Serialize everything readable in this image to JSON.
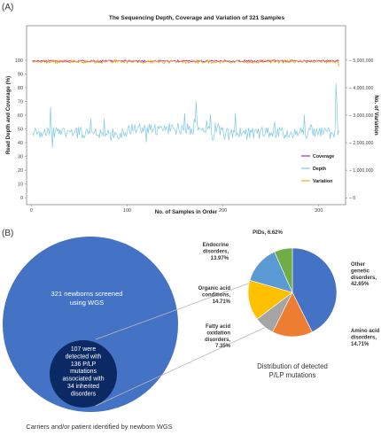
{
  "panel_a": {
    "label": "(A)"
  },
  "panel_b": {
    "label": "(B)",
    "venn": {
      "outer_lines": [
        "321 newborns screened",
        "using WGS"
      ],
      "inner_lines": [
        "107 were",
        "detected with",
        "136 P/LP",
        "mutations",
        "associated with",
        "34  inherited",
        "disorders"
      ],
      "caption": "Carriers and/or patient identified by newborn WGS",
      "outer_color": "#4472c4",
      "inner_color": "#0b2a63"
    }
  },
  "chart_data": [
    {
      "type": "line",
      "title": "The Sequencing Depth, Coverage and Variation of 321 Samples",
      "xlabel": "No. of Samples in Order",
      "ylabel": "Read Depth and Coverage (%)",
      "y2label": "No. of Variation",
      "xlim": [
        -5,
        328
      ],
      "ylim": [
        -5,
        125
      ],
      "xticks": [
        "0",
        "100",
        "200",
        "300"
      ],
      "yticks": [
        "0",
        "10",
        "20",
        "30",
        "40",
        "50",
        "60",
        "70",
        "80",
        "90",
        "100"
      ],
      "y2ticks": [
        "0",
        "1,000,000",
        "2,000,000",
        "3,000,000",
        "4,000,000",
        "5,000,000"
      ],
      "grid": false,
      "legend_position": "bottom-right",
      "series": [
        {
          "name": "Coverage",
          "color": "#9933cc",
          "base": 99.3,
          "noise": 0.7,
          "axis": "left"
        },
        {
          "name": "Depth",
          "color": "#7ec8e3",
          "base": 47,
          "noise": 4.5,
          "axis": "left"
        },
        {
          "name": "Variation",
          "color": "#f2a71b",
          "base": 4950000,
          "noise": 60000,
          "axis": "right"
        }
      ]
    },
    {
      "type": "pie",
      "title": "Distribution of detected P/LP mutations",
      "title_lines": [
        "Distribution of detected",
        "P/LP mutations"
      ],
      "slices": [
        {
          "name": "Other genetic disorders",
          "value": 42.65,
          "color": "#4472c4",
          "label_lines": [
            "Other",
            "genetic",
            "disorders,",
            "42.65%"
          ]
        },
        {
          "name": "Amino acid disorders",
          "value": 14.71,
          "color": "#ed7d31",
          "label_lines": [
            "Amino acid",
            "disorders,",
            "14.71%"
          ]
        },
        {
          "name": "Fatty acid oxidation disorders",
          "value": 7.35,
          "color": "#a5a5a5",
          "label_lines": [
            "Fatty acid",
            "oxidation",
            "disorders,",
            "7.35%"
          ]
        },
        {
          "name": "Organic acid conditions",
          "value": 14.71,
          "color": "#ffc000",
          "label_lines": [
            "Organic acid",
            "conditions,",
            "14.71%"
          ]
        },
        {
          "name": "Endocrine disorders",
          "value": 13.97,
          "color": "#5b9bd5",
          "label_lines": [
            "Endocrine",
            "disorders,",
            "13.97%"
          ]
        },
        {
          "name": "PIDs",
          "value": 6.62,
          "color": "#70ad47",
          "label_lines": [
            "PIDs, 6.62%"
          ]
        }
      ]
    }
  ]
}
